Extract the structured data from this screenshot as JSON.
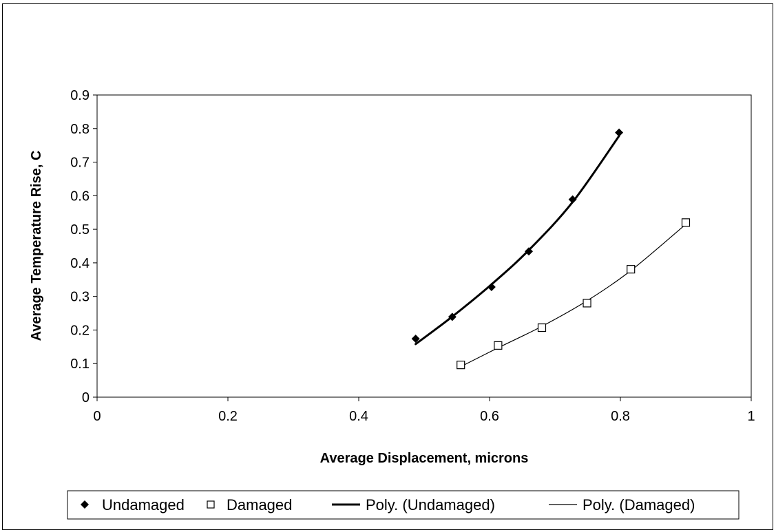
{
  "chart_data": {
    "type": "scatter",
    "title": "",
    "xlabel": "Average Displacement, microns",
    "ylabel": "Average Temperature Rise, C",
    "xlim": [
      0,
      1
    ],
    "ylim": [
      0,
      0.9
    ],
    "x_ticks": [
      "0",
      "0.2",
      "0.4",
      "0.6",
      "0.8",
      "1"
    ],
    "y_ticks": [
      "0",
      "0.1",
      "0.2",
      "0.3",
      "0.4",
      "0.5",
      "0.6",
      "0.7",
      "0.8",
      "0.9"
    ],
    "grid": false,
    "legend_position": "bottom",
    "series": [
      {
        "name": "Undamaged",
        "marker": "diamond",
        "color": "#000000",
        "points": [
          {
            "x": 0.487,
            "y": 0.174
          },
          {
            "x": 0.543,
            "y": 0.239
          },
          {
            "x": 0.603,
            "y": 0.328
          },
          {
            "x": 0.66,
            "y": 0.434
          },
          {
            "x": 0.727,
            "y": 0.589
          },
          {
            "x": 0.798,
            "y": 0.788
          }
        ]
      },
      {
        "name": "Damaged",
        "marker": "square-open",
        "color": "#000000",
        "points": [
          {
            "x": 0.556,
            "y": 0.096
          },
          {
            "x": 0.613,
            "y": 0.154
          },
          {
            "x": 0.68,
            "y": 0.207
          },
          {
            "x": 0.749,
            "y": 0.28
          },
          {
            "x": 0.816,
            "y": 0.381
          },
          {
            "x": 0.9,
            "y": 0.52
          }
        ]
      }
    ],
    "trendlines": [
      {
        "name": "Poly. (Undamaged)",
        "of_series": "Undamaged",
        "type": "polynomial",
        "color": "#000000",
        "weight": "thick",
        "points": [
          {
            "x": 0.487,
            "y": 0.158
          },
          {
            "x": 0.543,
            "y": 0.24
          },
          {
            "x": 0.603,
            "y": 0.336
          },
          {
            "x": 0.66,
            "y": 0.438
          },
          {
            "x": 0.727,
            "y": 0.581
          },
          {
            "x": 0.798,
            "y": 0.778
          }
        ]
      },
      {
        "name": "Poly. (Damaged)",
        "of_series": "Damaged",
        "type": "polynomial",
        "color": "#000000",
        "weight": "thin",
        "points": [
          {
            "x": 0.556,
            "y": 0.091
          },
          {
            "x": 0.613,
            "y": 0.147
          },
          {
            "x": 0.68,
            "y": 0.211
          },
          {
            "x": 0.749,
            "y": 0.287
          },
          {
            "x": 0.816,
            "y": 0.377
          },
          {
            "x": 0.9,
            "y": 0.515
          }
        ]
      }
    ],
    "legend": [
      {
        "label": "Undamaged",
        "symbol": "diamond"
      },
      {
        "label": "Damaged",
        "symbol": "square-open"
      },
      {
        "label": "Poly. (Undamaged)",
        "symbol": "line-thick"
      },
      {
        "label": "Poly. (Damaged)",
        "symbol": "line-thin"
      }
    ]
  }
}
